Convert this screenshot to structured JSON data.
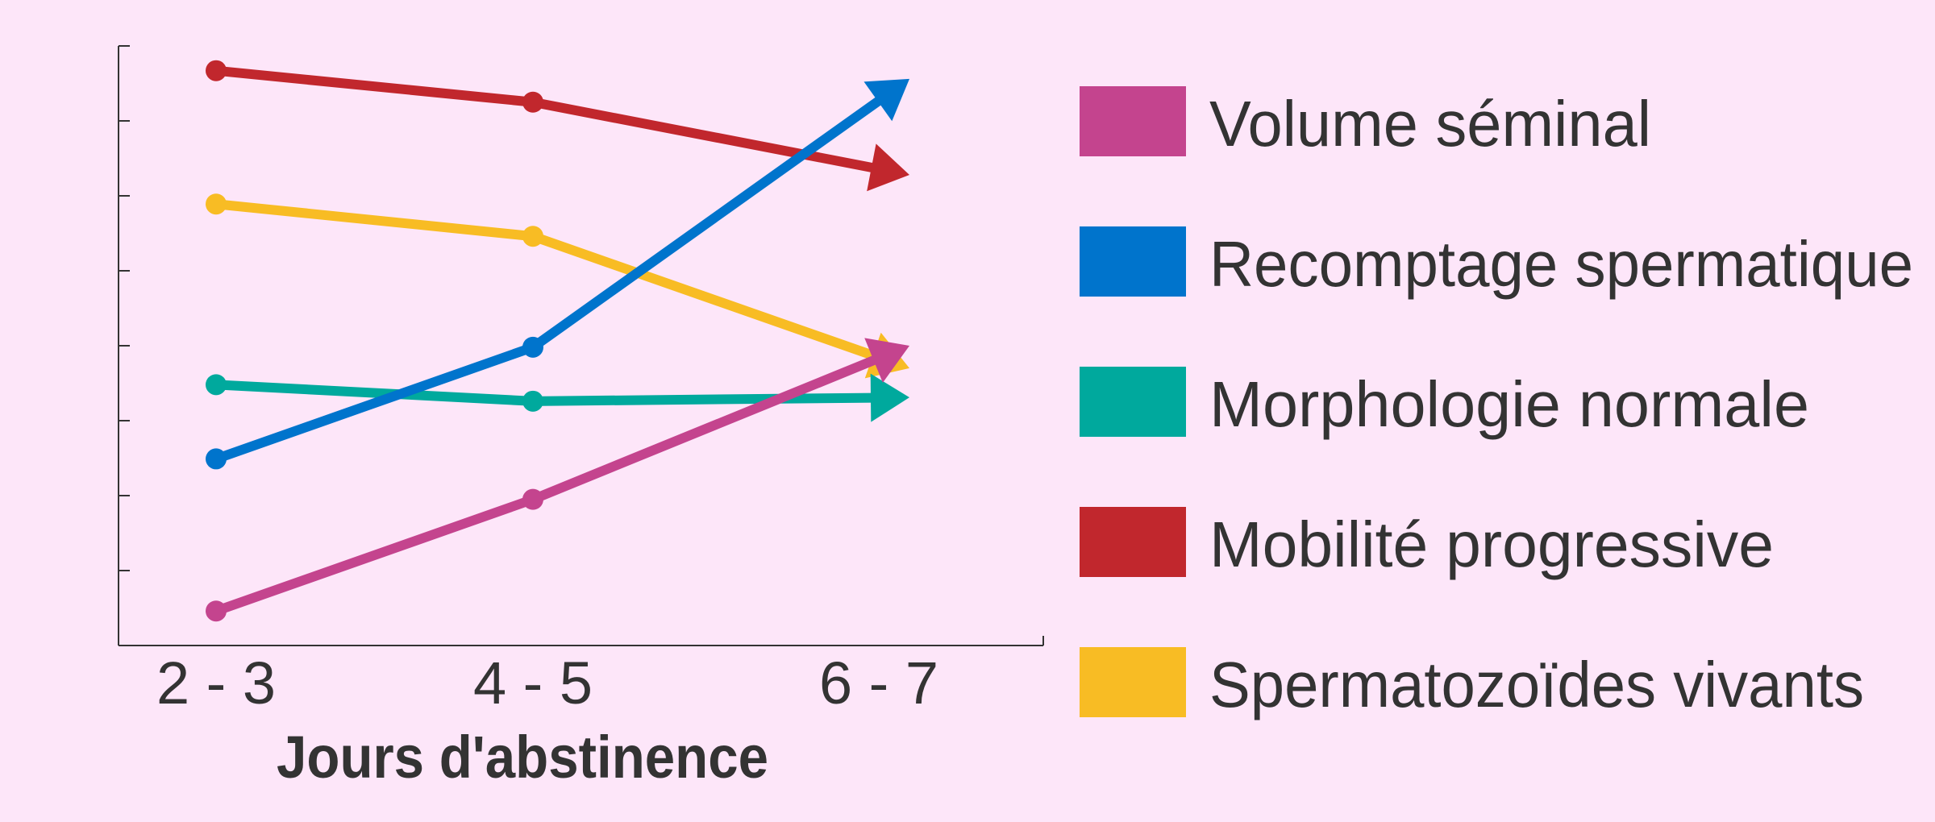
{
  "chart_data": {
    "type": "line",
    "title": "",
    "xlabel": "Jours d'abstinence",
    "ylabel": "",
    "categories": [
      "2 - 3",
      "4 - 5",
      "6 - 7"
    ],
    "ylim": [
      0,
      8
    ],
    "y_ticks": 8,
    "y_tick_labels_shown": false,
    "grid": false,
    "legend_position": "right",
    "series": [
      {
        "name": "Volume séminal",
        "color": "#c4448e",
        "values": [
          0.46,
          1.95,
          4.0
        ]
      },
      {
        "name": "Recomptage spermatique",
        "color": "#0074cc",
        "values": [
          2.49,
          3.98,
          7.56
        ]
      },
      {
        "name": "Morphologie normale",
        "color": "#00a99d",
        "values": [
          3.48,
          3.26,
          3.31
        ]
      },
      {
        "name": "Mobilité progressive",
        "color": "#c1272d",
        "values": [
          7.67,
          7.25,
          6.28
        ]
      },
      {
        "name": "Spermatozoïdes vivants",
        "color": "#f8bc24",
        "values": [
          5.89,
          5.46,
          3.7
        ]
      }
    ]
  }
}
